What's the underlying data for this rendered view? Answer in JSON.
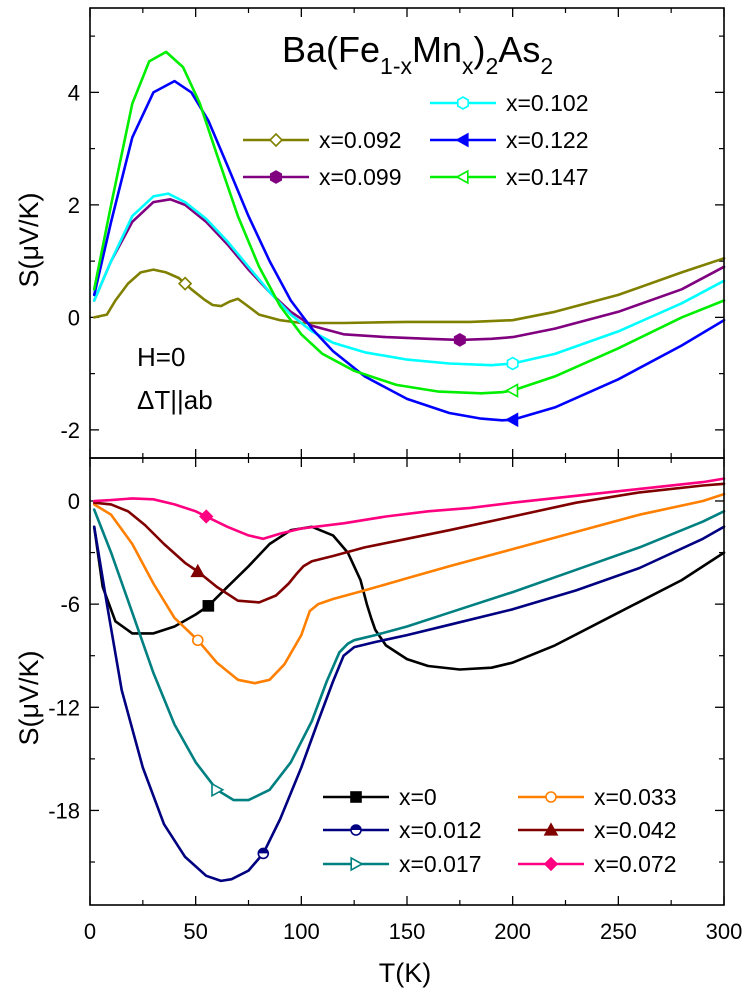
{
  "chart_data": [
    {
      "type": "line",
      "panel": "top",
      "title_parts": [
        "Ba(Fe",
        "1-x",
        "Mn",
        "x",
        ")",
        "2",
        "As",
        "2"
      ],
      "xlabel": "",
      "ylabel": "S(μV/K)",
      "xlim": [
        0,
        300
      ],
      "ylim": [
        -2.5,
        5.5
      ],
      "yticks": [
        -2,
        0,
        2,
        4
      ],
      "grid": false,
      "legend_placement": "top-right",
      "annotations": [
        "H=0",
        "ΔT||ab"
      ],
      "series": [
        {
          "name": "x=0.092",
          "color": "#808000",
          "marker": "diamond-open",
          "marker_x": [
            45
          ],
          "x": [
            2,
            8,
            12,
            18,
            24,
            30,
            36,
            42,
            48,
            54,
            58,
            62,
            66,
            70,
            74,
            80,
            90,
            100,
            120,
            150,
            180,
            200,
            220,
            250,
            280,
            300
          ],
          "y": [
            0.0,
            0.05,
            0.3,
            0.6,
            0.8,
            0.85,
            0.8,
            0.7,
            0.5,
            0.32,
            0.22,
            0.2,
            0.28,
            0.33,
            0.22,
            0.05,
            -0.05,
            -0.1,
            -0.1,
            -0.08,
            -0.08,
            -0.05,
            0.1,
            0.4,
            0.8,
            1.05
          ]
        },
        {
          "name": "x=0.099",
          "color": "#800080",
          "marker": "hexagon-filled",
          "marker_x": [
            175
          ],
          "x": [
            2,
            10,
            20,
            30,
            38,
            45,
            55,
            65,
            75,
            85,
            95,
            105,
            120,
            140,
            160,
            175,
            190,
            200,
            220,
            250,
            280,
            300
          ],
          "y": [
            0.3,
            1.0,
            1.7,
            2.05,
            2.1,
            2.0,
            1.7,
            1.3,
            0.85,
            0.45,
            0.1,
            -0.15,
            -0.3,
            -0.35,
            -0.38,
            -0.4,
            -0.38,
            -0.35,
            -0.2,
            0.1,
            0.5,
            0.9
          ]
        },
        {
          "name": "x=0.102",
          "color": "#00ffff",
          "marker": "hexagon-open",
          "marker_x": [
            200
          ],
          "x": [
            2,
            10,
            20,
            30,
            37,
            45,
            55,
            65,
            75,
            85,
            95,
            105,
            115,
            130,
            150,
            170,
            190,
            200,
            220,
            250,
            280,
            300
          ],
          "y": [
            0.3,
            1.0,
            1.8,
            2.15,
            2.2,
            2.05,
            1.75,
            1.35,
            0.9,
            0.45,
            0.05,
            -0.25,
            -0.45,
            -0.62,
            -0.75,
            -0.82,
            -0.85,
            -0.82,
            -0.65,
            -0.25,
            0.25,
            0.65
          ]
        },
        {
          "name": "x=0.122",
          "color": "#0000ff",
          "marker": "triangle-left-filled",
          "marker_x": [
            200
          ],
          "x": [
            2,
            10,
            20,
            30,
            40,
            48,
            56,
            65,
            75,
            85,
            95,
            105,
            115,
            130,
            150,
            170,
            185,
            195,
            200,
            220,
            250,
            280,
            300
          ],
          "y": [
            0.4,
            1.7,
            3.2,
            4.0,
            4.2,
            4.0,
            3.5,
            2.7,
            1.8,
            1.0,
            0.3,
            -0.2,
            -0.6,
            -1.05,
            -1.45,
            -1.7,
            -1.8,
            -1.83,
            -1.82,
            -1.6,
            -1.1,
            -0.5,
            -0.05
          ]
        },
        {
          "name": "x=0.147",
          "color": "#00ee00",
          "marker": "triangle-left-open",
          "marker_x": [
            200
          ],
          "x": [
            2,
            10,
            20,
            28,
            36,
            44,
            52,
            60,
            70,
            80,
            90,
            100,
            110,
            125,
            145,
            165,
            185,
            195,
            200,
            220,
            250,
            280,
            300
          ],
          "y": [
            0.5,
            2.0,
            3.8,
            4.55,
            4.72,
            4.45,
            3.8,
            2.9,
            1.8,
            0.9,
            0.2,
            -0.3,
            -0.65,
            -0.95,
            -1.2,
            -1.32,
            -1.35,
            -1.33,
            -1.3,
            -1.05,
            -0.55,
            0.0,
            0.3
          ]
        }
      ]
    },
    {
      "type": "line",
      "panel": "bottom",
      "xlabel": "T(K)",
      "ylabel": "S(μV/K)",
      "xlim": [
        0,
        300
      ],
      "xticks": [
        0,
        50,
        100,
        150,
        200,
        250,
        300
      ],
      "ylim": [
        -23.5,
        2.5
      ],
      "yticks": [
        -18,
        -12,
        -6,
        0
      ],
      "grid": false,
      "legend_placement": "bottom-right",
      "series": [
        {
          "name": "x=0",
          "color": "#000000",
          "marker": "square-filled",
          "marker_x": [
            56
          ],
          "x": [
            2,
            6,
            12,
            20,
            30,
            40,
            50,
            56,
            65,
            75,
            85,
            95,
            105,
            115,
            122,
            128,
            131,
            133,
            135,
            140,
            150,
            160,
            175,
            190,
            200,
            220,
            250,
            280,
            300
          ],
          "y": [
            -1.5,
            -5.0,
            -7.0,
            -7.7,
            -7.7,
            -7.3,
            -6.6,
            -6.1,
            -5.0,
            -3.8,
            -2.5,
            -1.7,
            -1.5,
            -2.0,
            -3.0,
            -4.6,
            -6.0,
            -6.8,
            -7.5,
            -8.4,
            -9.2,
            -9.6,
            -9.8,
            -9.7,
            -9.4,
            -8.4,
            -6.5,
            -4.6,
            -3.0
          ]
        },
        {
          "name": "x=0.012",
          "color": "#000080",
          "marker": "circle-half",
          "marker_x": [
            82
          ],
          "x": [
            2,
            8,
            15,
            25,
            35,
            45,
            55,
            62,
            67,
            75,
            82,
            90,
            100,
            108,
            115,
            120,
            125,
            135,
            150,
            170,
            200,
            230,
            260,
            290,
            300
          ],
          "y": [
            -1.5,
            -6.0,
            -11.0,
            -15.5,
            -18.8,
            -20.7,
            -21.8,
            -22.1,
            -22.0,
            -21.5,
            -20.5,
            -18.5,
            -15.5,
            -12.8,
            -10.5,
            -9.0,
            -8.5,
            -8.2,
            -7.8,
            -7.2,
            -6.3,
            -5.2,
            -3.9,
            -2.2,
            -1.5
          ]
        },
        {
          "name": "x=0.017",
          "color": "#008080",
          "marker": "triangle-right-open",
          "marker_x": [
            60
          ],
          "x": [
            2,
            10,
            20,
            30,
            40,
            50,
            60,
            68,
            75,
            85,
            95,
            105,
            112,
            118,
            122,
            125,
            135,
            150,
            170,
            200,
            230,
            260,
            290,
            300
          ],
          "y": [
            -0.5,
            -3.0,
            -6.5,
            -10.0,
            -13.0,
            -15.2,
            -16.8,
            -17.4,
            -17.4,
            -16.8,
            -15.2,
            -12.8,
            -10.5,
            -8.8,
            -8.3,
            -8.1,
            -7.8,
            -7.3,
            -6.5,
            -5.3,
            -4.0,
            -2.7,
            -1.2,
            -0.6
          ]
        },
        {
          "name": "x=0.033",
          "color": "#ff8000",
          "marker": "circle-open",
          "marker_x": [
            51
          ],
          "x": [
            2,
            10,
            20,
            30,
            40,
            51,
            60,
            70,
            78,
            85,
            92,
            100,
            104,
            108,
            115,
            130,
            150,
            170,
            200,
            230,
            260,
            290,
            300
          ],
          "y": [
            -0.2,
            -0.8,
            -2.5,
            -4.8,
            -6.8,
            -8.1,
            -9.4,
            -10.4,
            -10.6,
            -10.4,
            -9.5,
            -7.8,
            -6.4,
            -6.0,
            -5.7,
            -5.2,
            -4.5,
            -3.8,
            -2.8,
            -1.8,
            -0.8,
            0.0,
            0.4
          ]
        },
        {
          "name": "x=0.042",
          "color": "#800000",
          "marker": "triangle-up-filled",
          "marker_x": [
            51
          ],
          "x": [
            2,
            10,
            18,
            26,
            35,
            45,
            51,
            60,
            70,
            80,
            88,
            94,
            98,
            101,
            105,
            115,
            130,
            150,
            170,
            200,
            230,
            260,
            290,
            300
          ],
          "y": [
            -0.1,
            -0.2,
            -0.6,
            -1.4,
            -2.5,
            -3.6,
            -4.1,
            -5.0,
            -5.8,
            -5.9,
            -5.5,
            -4.8,
            -4.2,
            -3.8,
            -3.5,
            -3.2,
            -2.7,
            -2.2,
            -1.7,
            -0.9,
            -0.1,
            0.5,
            0.9,
            1.0
          ]
        },
        {
          "name": "x=0.072",
          "color": "#ff0080",
          "marker": "diamond-filled",
          "marker_x": [
            55
          ],
          "x": [
            2,
            10,
            20,
            30,
            40,
            50,
            55,
            65,
            75,
            82,
            90,
            100,
            120,
            140,
            160,
            180,
            200,
            230,
            260,
            290,
            300
          ],
          "y": [
            0.0,
            0.05,
            0.15,
            0.1,
            -0.2,
            -0.6,
            -0.9,
            -1.5,
            -2.0,
            -2.2,
            -1.9,
            -1.6,
            -1.3,
            -0.9,
            -0.6,
            -0.4,
            -0.1,
            0.3,
            0.7,
            1.1,
            1.3
          ]
        }
      ]
    }
  ]
}
